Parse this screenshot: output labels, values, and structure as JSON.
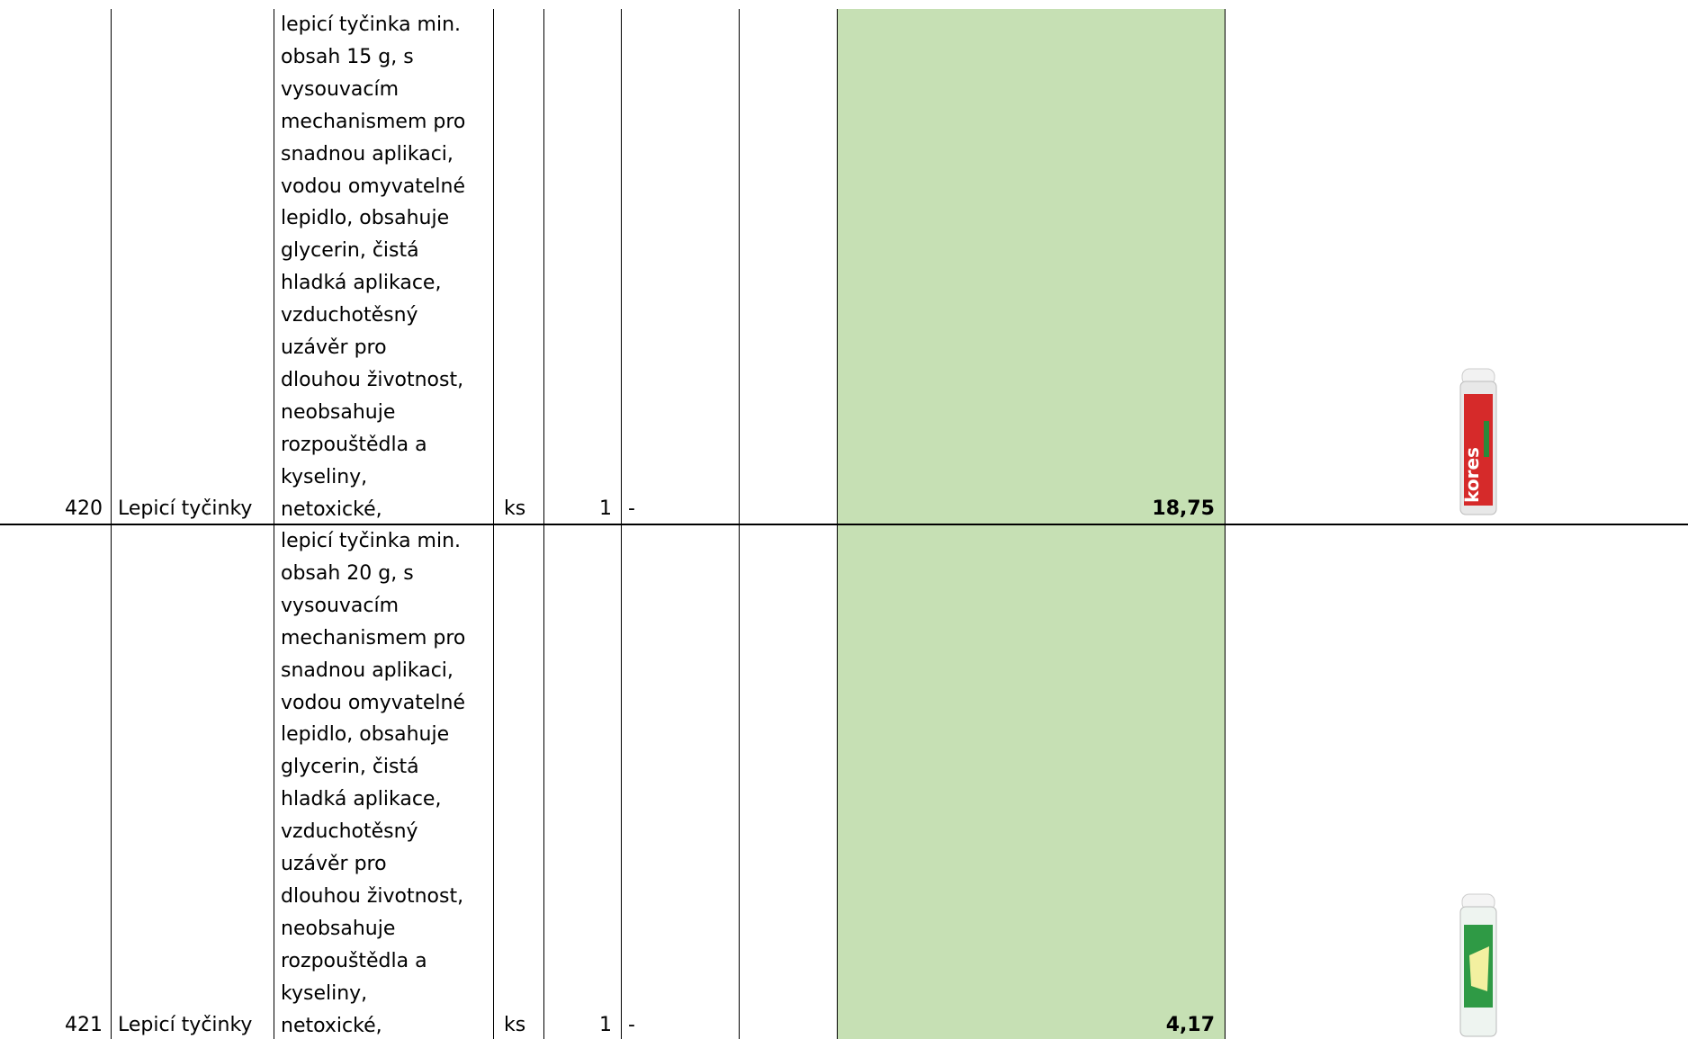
{
  "table": {
    "rows": [
      {
        "number": "420",
        "name": "Lepicí tyčinky",
        "description_lines": [
          "lepicí tyčinka min.",
          "obsah 15 g, s",
          "vysouvacím",
          "mechanismem pro",
          "snadnou aplikaci,",
          "vodou omyvatelné",
          "lepidlo, obsahuje",
          "glycerin, čistá",
          "hladká aplikace,",
          "vzduchotěsný",
          "uzávěr pro",
          "dlouhou životnost,",
          "neobsahuje",
          "rozpouštědla a",
          "kyseliny,",
          "netoxické,"
        ],
        "unit": "ks",
        "quantity": "1",
        "dash": "-",
        "price": "18,75"
      },
      {
        "number": "421",
        "name": "Lepicí tyčinky",
        "description_lines": [
          "lepicí tyčinka min.",
          "obsah 20 g, s",
          "vysouvacím",
          "mechanismem pro",
          "snadnou aplikaci,",
          "vodou omyvatelné",
          "lepidlo, obsahuje",
          "glycerin, čistá",
          "hladká aplikace,",
          "vzduchotěsný",
          "uzávěr pro",
          "dlouhou životnost,",
          "neobsahuje",
          "rozpouštědla a",
          "kyseliny,",
          "netoxické,"
        ],
        "unit": "ks",
        "quantity": "1",
        "dash": "-",
        "price": "4,17"
      }
    ]
  }
}
